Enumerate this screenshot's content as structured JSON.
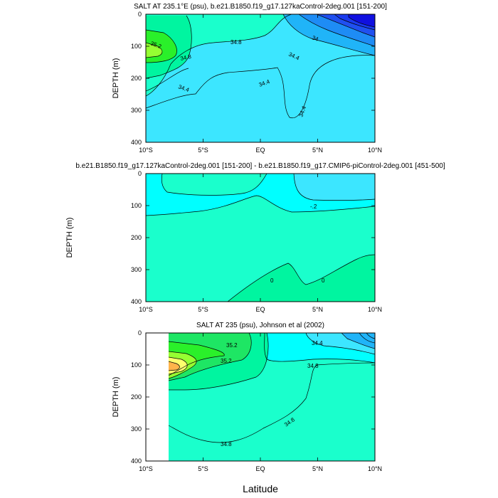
{
  "figure": {
    "xlabel": "Latitude"
  },
  "chart_data": [
    {
      "type": "contour",
      "title": "SALT AT 235.1°E (psu), b.e21.B1850.f19_g17.127kaControl-2deg.001 [151-200]",
      "ylabel": "DEPTH (m)",
      "x_ticks": [
        "10°S",
        "5°S",
        "EQ",
        "5°N",
        "10°N"
      ],
      "y_ticks": [
        "0",
        "100",
        "200",
        "300",
        "400"
      ],
      "xlim": [
        -10,
        10
      ],
      "ylim": [
        400,
        0
      ],
      "contour_labels": [
        "35.2",
        "34.8",
        "34.8",
        "34.4",
        "34.4",
        "34.4",
        "34.4",
        "34"
      ]
    },
    {
      "type": "contour",
      "title": "b.e21.B1850.f19_g17.127kaControl-2deg.001 [151-200] - b.e21.B1850.f19_g17.CMIP6-piControl-2deg.001 [451-500]",
      "ylabel": "DEPTH (m)",
      "x_ticks": [
        "10°S",
        "5°S",
        "EQ",
        "5°N",
        "10°N"
      ],
      "y_ticks": [
        "0",
        "100",
        "200",
        "300",
        "400"
      ],
      "xlim": [
        -10,
        10
      ],
      "ylim": [
        400,
        0
      ],
      "contour_labels": [
        "-.2",
        "0",
        "0"
      ]
    },
    {
      "type": "contour",
      "title": "SALT AT 235 (psu), Johnson et al (2002)",
      "ylabel": "DEPTH (m)",
      "x_ticks": [
        "10°S",
        "5°S",
        "EQ",
        "5°N",
        "10°N"
      ],
      "y_ticks": [
        "0",
        "100",
        "200",
        "300",
        "400"
      ],
      "xlim": [
        -10,
        10
      ],
      "ylim": [
        400,
        0
      ],
      "contour_labels": [
        "35.2",
        "35.2",
        "34.8",
        "34.8",
        "34.8",
        "34.4"
      ]
    }
  ],
  "colors": {
    "deep_blue": "#1010e0",
    "blue": "#2050f0",
    "mid_blue": "#1e8cf5",
    "light_blue": "#20b4f8",
    "cyan": "#3ce6ff",
    "cyan2": "#00ffff",
    "teal": "#1affcc",
    "sea_green": "#00f5a0",
    "green": "#1ee664",
    "bright_green": "#2af02a",
    "lime": "#96ff32",
    "yellow": "#ffff6e",
    "orange": "#ffb44a"
  }
}
